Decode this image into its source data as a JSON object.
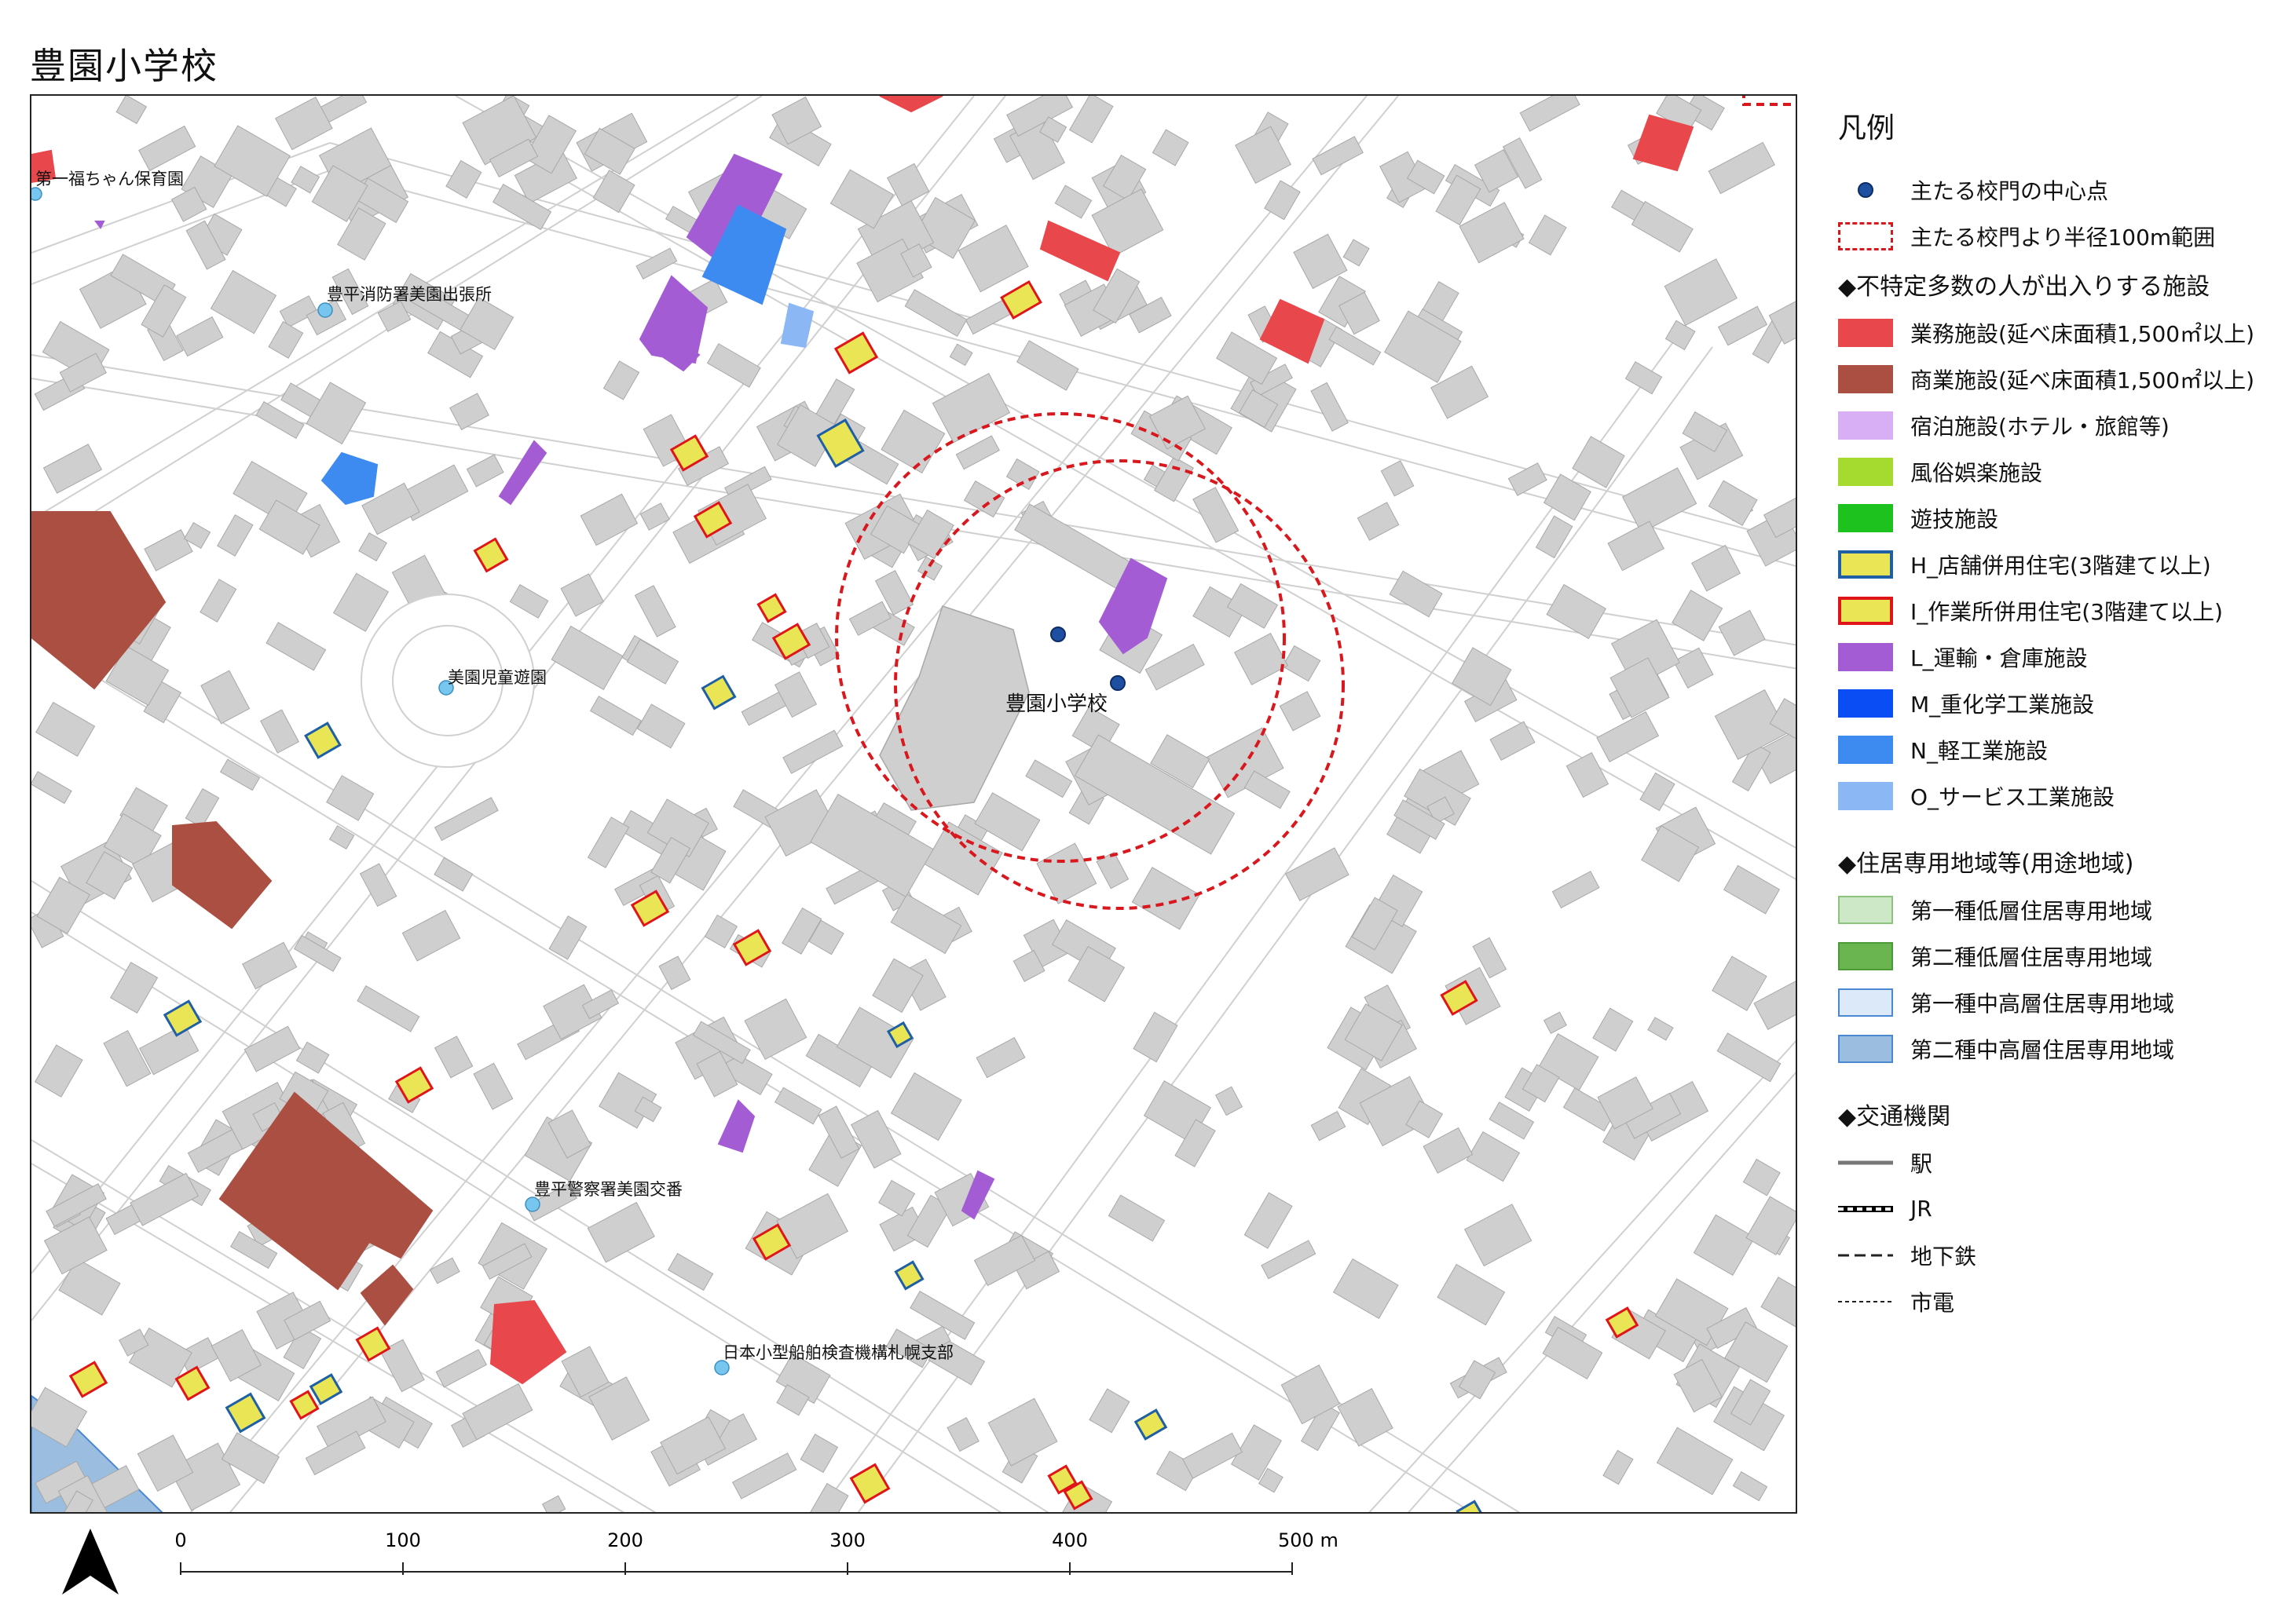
{
  "title": "豊園小学校",
  "school_label": "豊園小学校",
  "poi_labels": [
    {
      "id": "nursery",
      "text": "第一福ちゃん保育園"
    },
    {
      "id": "fire",
      "text": "豊平消防署美園出張所"
    },
    {
      "id": "park",
      "text": "美園児童遊園"
    },
    {
      "id": "police",
      "text": "豊平警察署美園交番"
    },
    {
      "id": "ship",
      "text": "日本小型船舶検査機構札幌支部"
    }
  ],
  "legend": {
    "title": "凡例",
    "gate_point": "主たる校門の中心点",
    "gate_range": "主たる校門より半径100m範囲",
    "section_facilities": "◆不特定多数の人が出入りする施設",
    "facilities": [
      {
        "label": "業務施設(延べ床面積1,500㎡以上)",
        "fill": "#e8474c",
        "stroke": "#e8474c"
      },
      {
        "label": "商業施設(延べ床面積1,500㎡以上)",
        "fill": "#aa4f42",
        "stroke": "#aa4f42"
      },
      {
        "label": "宿泊施設(ホテル・旅館等)",
        "fill": "#d8aef5",
        "stroke": "#d8aef5"
      },
      {
        "label": "風俗娯楽施設",
        "fill": "#a5da2f",
        "stroke": "#a5da2f"
      },
      {
        "label": "遊技施設",
        "fill": "#1ec21e",
        "stroke": "#1ec21e"
      },
      {
        "label": "H_店舗併用住宅(3階建て以上)",
        "fill": "#e9e555",
        "stroke": "#1f5fa6"
      },
      {
        "label": "I_作業所併用住宅(3階建て以上)",
        "fill": "#e9e555",
        "stroke": "#e0151a"
      },
      {
        "label": "L_運輸・倉庫施設",
        "fill": "#a35cd4",
        "stroke": "#a35cd4"
      },
      {
        "label": "M_重化学工業施設",
        "fill": "#0b4df5",
        "stroke": "#0b4df5"
      },
      {
        "label": "N_軽工業施設",
        "fill": "#3d8af0",
        "stroke": "#3d8af0"
      },
      {
        "label": "O_サービス工業施設",
        "fill": "#8bb8f5",
        "stroke": "#8bb8f5"
      }
    ],
    "section_zoning": "◆住居専用地域等(用途地域)",
    "zoning": [
      {
        "label": "第一種低層住居専用地域",
        "fill": "#cde8c6",
        "stroke": "#8cc47d"
      },
      {
        "label": "第二種低層住居専用地域",
        "fill": "#6ab54f",
        "stroke": "#4a9a38"
      },
      {
        "label": "第一種中高層住居専用地域",
        "fill": "#dbe9f8",
        "stroke": "#4a88d1"
      },
      {
        "label": "第二種中高層住居専用地域",
        "fill": "#9bbde0",
        "stroke": "#4a88d1"
      }
    ],
    "section_transport": "◆交通機関",
    "transport": [
      {
        "label": "駅",
        "style": "station"
      },
      {
        "label": "JR",
        "style": "jr"
      },
      {
        "label": "地下鉄",
        "style": "subway"
      },
      {
        "label": "市電",
        "style": "tram"
      }
    ]
  },
  "scale": {
    "ticks": [
      "0",
      "100",
      "200",
      "300",
      "400",
      "500 m"
    ]
  },
  "colors": {
    "building": "#cfcfcf",
    "road": "#d0d0d0",
    "gate": "#1f4fa0",
    "poi": "#76c6f0",
    "range": "#d9181e"
  }
}
